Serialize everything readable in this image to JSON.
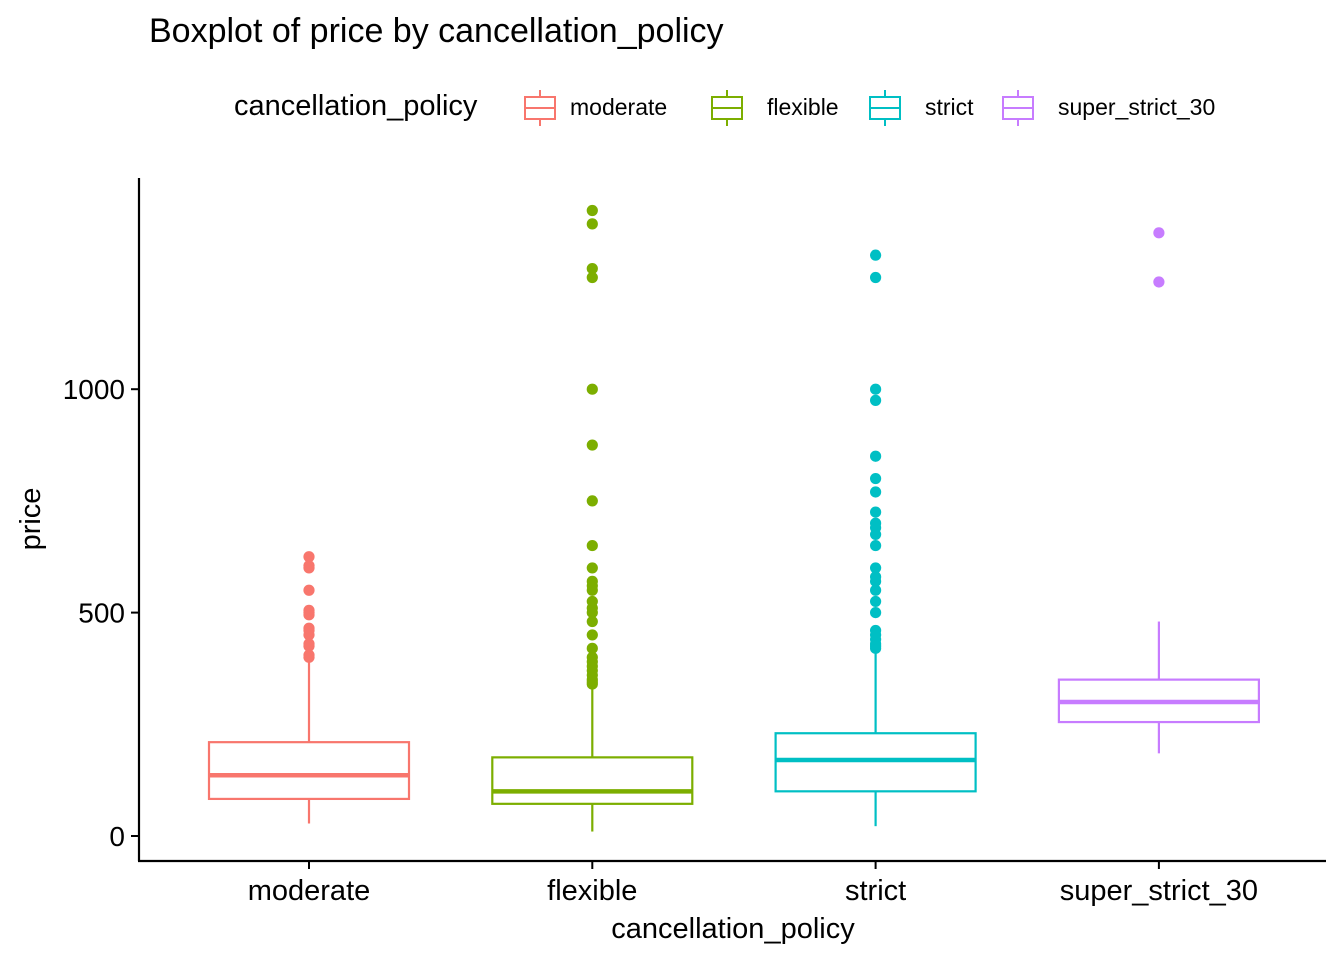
{
  "chart_data": {
    "type": "boxplot",
    "title": "Boxplot of price by cancellation_policy",
    "xlabel": "cancellation_policy",
    "ylabel": "price",
    "categories": [
      "moderate",
      "flexible",
      "strict",
      "super_strict_30"
    ],
    "yticks": [
      0,
      500,
      1000
    ],
    "ylim": [
      -55,
      1470
    ],
    "grid": false,
    "legend": {
      "title": "cancellation_policy",
      "position": "top",
      "entries": [
        "moderate",
        "flexible",
        "strict",
        "super_strict_30"
      ]
    },
    "colors": [
      "#F8766D",
      "#7CAE00",
      "#00BFC4",
      "#C77CFF"
    ],
    "series": [
      {
        "category": "moderate",
        "whisker_low": 28,
        "q1": 83,
        "median": 136,
        "q3": 210,
        "whisker_high": 395,
        "outliers": [
          400,
          405,
          425,
          430,
          450,
          460,
          465,
          495,
          500,
          505,
          550,
          600,
          605,
          625
        ]
      },
      {
        "category": "flexible",
        "whisker_low": 10,
        "q1": 72,
        "median": 100,
        "q3": 176,
        "whisker_high": 330,
        "outliers": [
          340,
          345,
          350,
          360,
          370,
          380,
          390,
          400,
          420,
          450,
          480,
          500,
          510,
          525,
          550,
          560,
          570,
          600,
          650,
          750,
          875,
          1000,
          1250,
          1270,
          1370,
          1400
        ]
      },
      {
        "category": "strict",
        "whisker_low": 22,
        "q1": 100,
        "median": 170,
        "q3": 230,
        "whisker_high": 410,
        "outliers": [
          420,
          425,
          430,
          440,
          450,
          460,
          500,
          525,
          550,
          570,
          580,
          600,
          650,
          675,
          690,
          700,
          725,
          770,
          800,
          850,
          975,
          1000,
          1250,
          1300
        ]
      },
      {
        "category": "super_strict_30",
        "whisker_low": 185,
        "q1": 255,
        "median": 300,
        "q3": 350,
        "whisker_high": 480,
        "outliers": [
          1240,
          1350
        ]
      }
    ]
  }
}
